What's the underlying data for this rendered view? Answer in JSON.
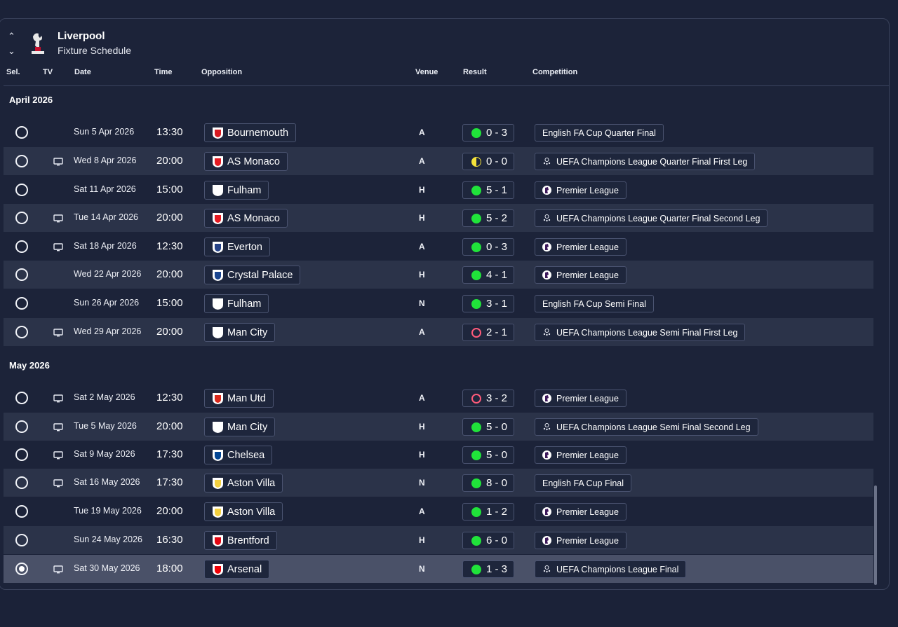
{
  "header": {
    "team": "Liverpool",
    "subtitle": "Fixture Schedule"
  },
  "columns": {
    "sel": "Sel.",
    "tv": "TV",
    "date": "Date",
    "time": "Time",
    "opposition": "Opposition",
    "venue": "Venue",
    "result": "Result",
    "competition": "Competition"
  },
  "colors": {
    "win": "#20e33a",
    "loss": "#ff5b7a",
    "draw": "#f5e23a",
    "background": "#1c2339",
    "row_alt": "#2b3349"
  },
  "months": [
    "April 2026",
    "May 2026"
  ],
  "fixtures": [
    {
      "date": "Sun 5 Apr 2026",
      "time": "13:30",
      "tv": false,
      "opponent": "Bournemouth",
      "venue": "A",
      "outcome": "win",
      "score": "0 - 3",
      "competition": "English FA Cup Quarter Final",
      "comp_icon": "none"
    },
    {
      "date": "Wed 8 Apr 2026",
      "time": "20:00",
      "tv": true,
      "opponent": "AS Monaco",
      "venue": "A",
      "outcome": "draw",
      "score": "0 - 0",
      "competition": "UEFA Champions League Quarter Final First Leg",
      "comp_icon": "ucl-icon"
    },
    {
      "date": "Sat 11 Apr 2026",
      "time": "15:00",
      "tv": false,
      "opponent": "Fulham",
      "venue": "H",
      "outcome": "win",
      "score": "5 - 1",
      "competition": "Premier League",
      "comp_icon": "premier-league-icon"
    },
    {
      "date": "Tue 14 Apr 2026",
      "time": "20:00",
      "tv": true,
      "opponent": "AS Monaco",
      "venue": "H",
      "outcome": "win",
      "score": "5 - 2",
      "competition": "UEFA Champions League Quarter Final Second Leg",
      "comp_icon": "ucl-icon"
    },
    {
      "date": "Sat 18 Apr 2026",
      "time": "12:30",
      "tv": true,
      "opponent": "Everton",
      "venue": "A",
      "outcome": "win",
      "score": "0 - 3",
      "competition": "Premier League",
      "comp_icon": "premier-league-icon"
    },
    {
      "date": "Wed 22 Apr 2026",
      "time": "20:00",
      "tv": false,
      "opponent": "Crystal Palace",
      "venue": "H",
      "outcome": "win",
      "score": "4 - 1",
      "competition": "Premier League",
      "comp_icon": "premier-league-icon"
    },
    {
      "date": "Sun 26 Apr 2026",
      "time": "15:00",
      "tv": false,
      "opponent": "Fulham",
      "venue": "N",
      "outcome": "win",
      "score": "3 - 1",
      "competition": "English FA Cup Semi Final",
      "comp_icon": "none"
    },
    {
      "date": "Wed 29 Apr 2026",
      "time": "20:00",
      "tv": true,
      "opponent": "Man City",
      "venue": "A",
      "outcome": "loss",
      "score": "2 - 1",
      "competition": "UEFA Champions League Semi Final First Leg",
      "comp_icon": "ucl-icon"
    },
    {
      "date": "Sat 2 May 2026",
      "time": "12:30",
      "tv": true,
      "opponent": "Man Utd",
      "venue": "A",
      "outcome": "loss",
      "score": "3 - 2",
      "competition": "Premier League",
      "comp_icon": "premier-league-icon"
    },
    {
      "date": "Tue 5 May 2026",
      "time": "20:00",
      "tv": true,
      "opponent": "Man City",
      "venue": "H",
      "outcome": "win",
      "score": "5 - 0",
      "competition": "UEFA Champions League Semi Final Second Leg",
      "comp_icon": "ucl-icon"
    },
    {
      "date": "Sat 9 May 2026",
      "time": "17:30",
      "tv": true,
      "opponent": "Chelsea",
      "venue": "H",
      "outcome": "win",
      "score": "5 - 0",
      "competition": "Premier League",
      "comp_icon": "premier-league-icon"
    },
    {
      "date": "Sat 16 May 2026",
      "time": "17:30",
      "tv": true,
      "opponent": "Aston Villa",
      "venue": "N",
      "outcome": "win",
      "score": "8 - 0",
      "competition": "English FA Cup Final",
      "comp_icon": "none"
    },
    {
      "date": "Tue 19 May 2026",
      "time": "20:00",
      "tv": false,
      "opponent": "Aston Villa",
      "venue": "A",
      "outcome": "win",
      "score": "1 - 2",
      "competition": "Premier League",
      "comp_icon": "premier-league-icon"
    },
    {
      "date": "Sun 24 May 2026",
      "time": "16:30",
      "tv": false,
      "opponent": "Brentford",
      "venue": "H",
      "outcome": "win",
      "score": "6 - 0",
      "competition": "Premier League",
      "comp_icon": "premier-league-icon"
    },
    {
      "date": "Sat 30 May 2026",
      "time": "18:00",
      "tv": true,
      "opponent": "Arsenal",
      "venue": "N",
      "outcome": "win",
      "score": "1 - 3",
      "competition": "UEFA Champions League Final",
      "comp_icon": "ucl-icon",
      "selected": true
    }
  ]
}
